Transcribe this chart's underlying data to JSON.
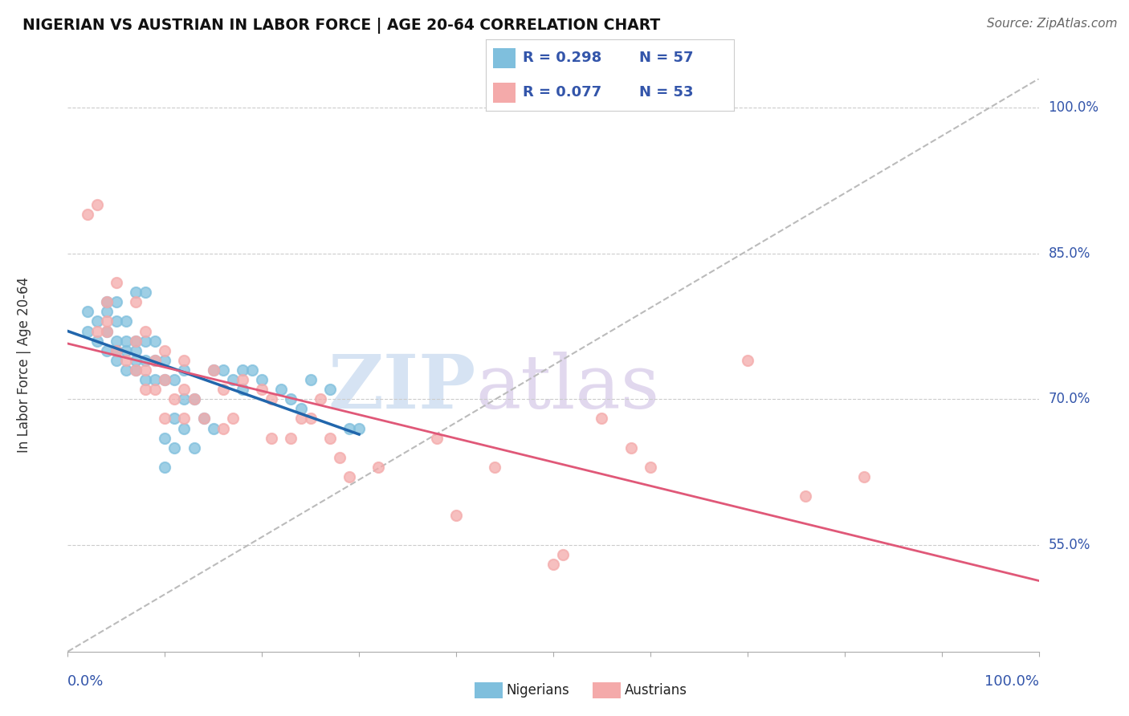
{
  "title": "NIGERIAN VS AUSTRIAN IN LABOR FORCE | AGE 20-64 CORRELATION CHART",
  "source": "Source: ZipAtlas.com",
  "ylabel": "In Labor Force | Age 20-64",
  "xmin": 0.0,
  "xmax": 1.0,
  "ymin": 0.44,
  "ymax": 1.03,
  "yticks": [
    0.55,
    0.7,
    0.85,
    1.0
  ],
  "ytick_labels": [
    "55.0%",
    "70.0%",
    "85.0%",
    "100.0%"
  ],
  "color_nigerian": "#7fbfdd",
  "color_austrian": "#f4aaaa",
  "color_trend_nigerian": "#2166ac",
  "color_trend_austrian": "#e05878",
  "color_dashed": "#bbbbbb",
  "R_nigerian": 0.298,
  "N_nigerian": 57,
  "R_austrian": 0.077,
  "N_austrian": 53,
  "legend_box_color": "#ffffff",
  "legend_border_color": "#dddddd",
  "text_color": "#3355aa",
  "title_color": "#111111",
  "watermark_zip_color": "#c8d8ec",
  "watermark_atlas_color": "#d8cce8",
  "nigerian_x": [
    0.02,
    0.02,
    0.03,
    0.03,
    0.04,
    0.04,
    0.04,
    0.04,
    0.05,
    0.05,
    0.05,
    0.05,
    0.05,
    0.06,
    0.06,
    0.06,
    0.06,
    0.07,
    0.07,
    0.07,
    0.07,
    0.07,
    0.08,
    0.08,
    0.08,
    0.08,
    0.09,
    0.09,
    0.09,
    0.1,
    0.1,
    0.1,
    0.1,
    0.11,
    0.11,
    0.11,
    0.12,
    0.12,
    0.12,
    0.13,
    0.13,
    0.14,
    0.15,
    0.15,
    0.16,
    0.17,
    0.18,
    0.18,
    0.19,
    0.2,
    0.22,
    0.23,
    0.24,
    0.25,
    0.27,
    0.29,
    0.3
  ],
  "nigerian_y": [
    0.77,
    0.79,
    0.76,
    0.78,
    0.75,
    0.77,
    0.79,
    0.8,
    0.74,
    0.75,
    0.76,
    0.78,
    0.8,
    0.73,
    0.75,
    0.76,
    0.78,
    0.73,
    0.74,
    0.75,
    0.76,
    0.81,
    0.72,
    0.74,
    0.76,
    0.81,
    0.72,
    0.74,
    0.76,
    0.63,
    0.66,
    0.72,
    0.74,
    0.65,
    0.68,
    0.72,
    0.67,
    0.7,
    0.73,
    0.65,
    0.7,
    0.68,
    0.67,
    0.73,
    0.73,
    0.72,
    0.71,
    0.73,
    0.73,
    0.72,
    0.71,
    0.7,
    0.69,
    0.72,
    0.71,
    0.67,
    0.67
  ],
  "austrian_x": [
    0.02,
    0.03,
    0.03,
    0.04,
    0.04,
    0.04,
    0.05,
    0.05,
    0.06,
    0.07,
    0.07,
    0.07,
    0.08,
    0.08,
    0.08,
    0.09,
    0.09,
    0.1,
    0.1,
    0.1,
    0.11,
    0.12,
    0.12,
    0.12,
    0.13,
    0.14,
    0.15,
    0.16,
    0.16,
    0.17,
    0.18,
    0.2,
    0.21,
    0.21,
    0.23,
    0.24,
    0.25,
    0.26,
    0.27,
    0.28,
    0.29,
    0.32,
    0.38,
    0.4,
    0.44,
    0.5,
    0.51,
    0.55,
    0.58,
    0.6,
    0.7,
    0.76,
    0.82
  ],
  "austrian_y": [
    0.89,
    0.9,
    0.77,
    0.77,
    0.78,
    0.8,
    0.75,
    0.82,
    0.74,
    0.73,
    0.76,
    0.8,
    0.71,
    0.73,
    0.77,
    0.71,
    0.74,
    0.68,
    0.72,
    0.75,
    0.7,
    0.68,
    0.71,
    0.74,
    0.7,
    0.68,
    0.73,
    0.67,
    0.71,
    0.68,
    0.72,
    0.71,
    0.66,
    0.7,
    0.66,
    0.68,
    0.68,
    0.7,
    0.66,
    0.64,
    0.62,
    0.63,
    0.66,
    0.58,
    0.63,
    0.53,
    0.54,
    0.68,
    0.65,
    0.63,
    0.74,
    0.6,
    0.62
  ],
  "background_color": "#ffffff",
  "grid_color": "#cccccc",
  "watermark": "ZIP",
  "watermark2": "atlas"
}
